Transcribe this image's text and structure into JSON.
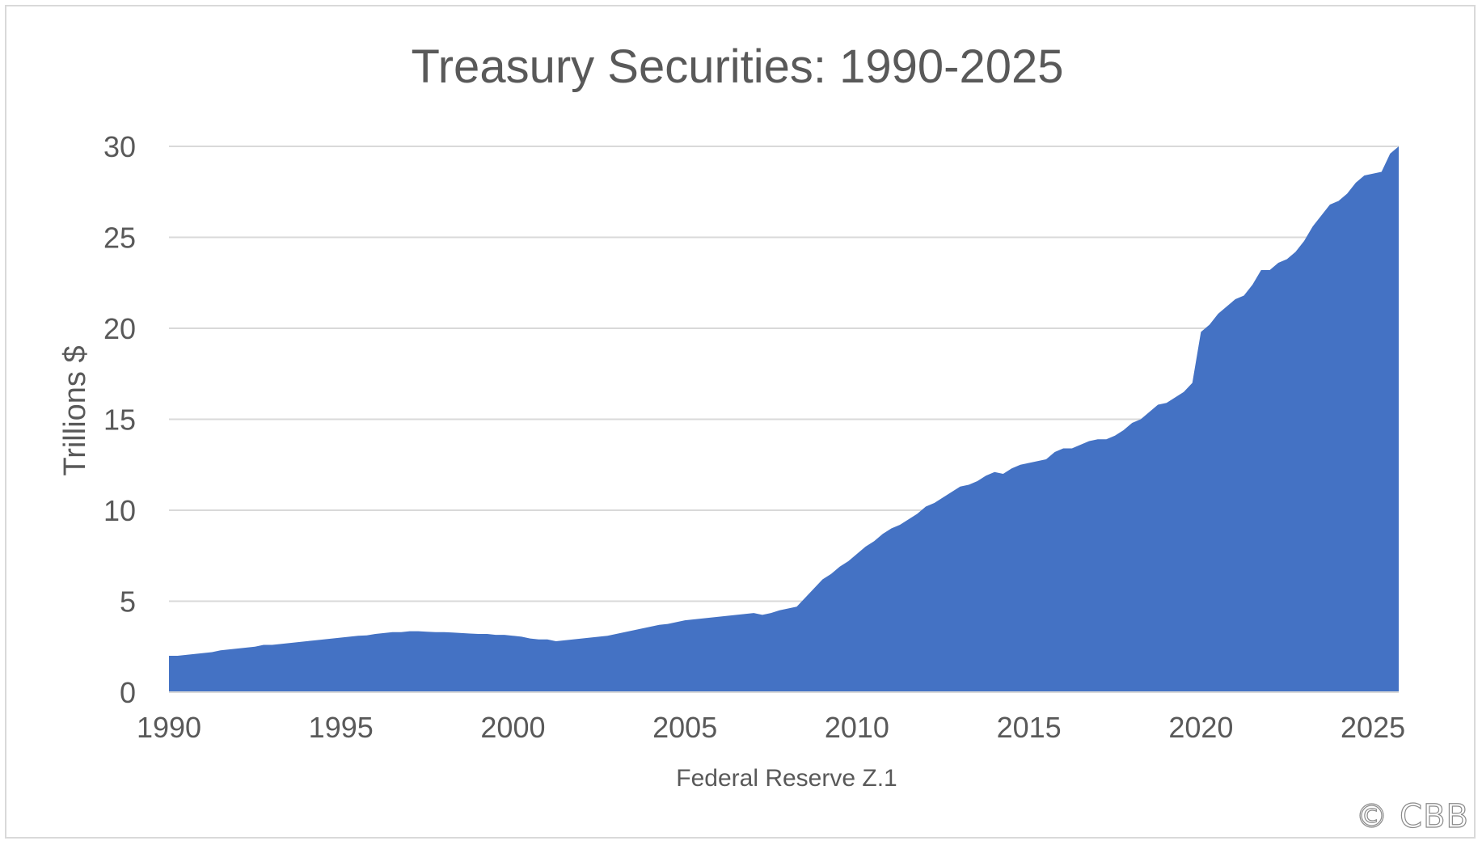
{
  "chart_data": {
    "type": "area",
    "title": "Treasury Securities: 1990-2025",
    "xlabel": "Federal Reserve Z.1",
    "ylabel": "Trillions $",
    "xlim": [
      1990,
      2025.75
    ],
    "ylim": [
      0,
      30
    ],
    "yticks": [
      "0",
      "5",
      "10",
      "15",
      "20",
      "25",
      "30"
    ],
    "xticks": [
      "1990",
      "1995",
      "2000",
      "2005",
      "2010",
      "2015",
      "2020",
      "2025"
    ],
    "grid": true,
    "legend": "none",
    "series": [
      {
        "color": "#4472c4",
        "points": [
          [
            1990.0,
            2.0
          ],
          [
            1990.25,
            2.0
          ],
          [
            1990.5,
            2.05
          ],
          [
            1990.75,
            2.1
          ],
          [
            1991.0,
            2.15
          ],
          [
            1991.25,
            2.2
          ],
          [
            1991.5,
            2.3
          ],
          [
            1991.75,
            2.35
          ],
          [
            1992.0,
            2.4
          ],
          [
            1992.25,
            2.45
          ],
          [
            1992.5,
            2.5
          ],
          [
            1992.75,
            2.6
          ],
          [
            1993.0,
            2.6
          ],
          [
            1993.25,
            2.65
          ],
          [
            1993.5,
            2.7
          ],
          [
            1993.75,
            2.75
          ],
          [
            1994.0,
            2.8
          ],
          [
            1994.25,
            2.85
          ],
          [
            1994.5,
            2.9
          ],
          [
            1994.75,
            2.95
          ],
          [
            1995.0,
            3.0
          ],
          [
            1995.25,
            3.05
          ],
          [
            1995.5,
            3.1
          ],
          [
            1995.75,
            3.12
          ],
          [
            1996.0,
            3.2
          ],
          [
            1996.25,
            3.25
          ],
          [
            1996.5,
            3.3
          ],
          [
            1996.75,
            3.3
          ],
          [
            1997.0,
            3.35
          ],
          [
            1997.25,
            3.35
          ],
          [
            1997.5,
            3.32
          ],
          [
            1997.75,
            3.3
          ],
          [
            1998.0,
            3.3
          ],
          [
            1998.25,
            3.28
          ],
          [
            1998.5,
            3.25
          ],
          [
            1998.75,
            3.22
          ],
          [
            1999.0,
            3.2
          ],
          [
            1999.25,
            3.2
          ],
          [
            1999.5,
            3.15
          ],
          [
            1999.75,
            3.15
          ],
          [
            2000.0,
            3.1
          ],
          [
            2000.25,
            3.05
          ],
          [
            2000.5,
            2.95
          ],
          [
            2000.75,
            2.9
          ],
          [
            2001.0,
            2.9
          ],
          [
            2001.25,
            2.8
          ],
          [
            2001.5,
            2.85
          ],
          [
            2001.75,
            2.9
          ],
          [
            2002.0,
            2.95
          ],
          [
            2002.25,
            3.0
          ],
          [
            2002.5,
            3.05
          ],
          [
            2002.75,
            3.1
          ],
          [
            2003.0,
            3.2
          ],
          [
            2003.25,
            3.3
          ],
          [
            2003.5,
            3.4
          ],
          [
            2003.75,
            3.5
          ],
          [
            2004.0,
            3.6
          ],
          [
            2004.25,
            3.7
          ],
          [
            2004.5,
            3.75
          ],
          [
            2004.75,
            3.85
          ],
          [
            2005.0,
            3.95
          ],
          [
            2005.25,
            4.0
          ],
          [
            2005.5,
            4.05
          ],
          [
            2005.75,
            4.1
          ],
          [
            2006.0,
            4.15
          ],
          [
            2006.25,
            4.2
          ],
          [
            2006.5,
            4.25
          ],
          [
            2006.75,
            4.3
          ],
          [
            2007.0,
            4.35
          ],
          [
            2007.25,
            4.25
          ],
          [
            2007.5,
            4.35
          ],
          [
            2007.75,
            4.5
          ],
          [
            2008.0,
            4.6
          ],
          [
            2008.25,
            4.7
          ],
          [
            2008.5,
            5.2
          ],
          [
            2008.75,
            5.7
          ],
          [
            2009.0,
            6.2
          ],
          [
            2009.25,
            6.5
          ],
          [
            2009.5,
            6.9
          ],
          [
            2009.75,
            7.2
          ],
          [
            2010.0,
            7.6
          ],
          [
            2010.25,
            8.0
          ],
          [
            2010.5,
            8.3
          ],
          [
            2010.75,
            8.7
          ],
          [
            2011.0,
            9.0
          ],
          [
            2011.25,
            9.2
          ],
          [
            2011.5,
            9.5
          ],
          [
            2011.75,
            9.8
          ],
          [
            2012.0,
            10.2
          ],
          [
            2012.25,
            10.4
          ],
          [
            2012.5,
            10.7
          ],
          [
            2012.75,
            11.0
          ],
          [
            2013.0,
            11.3
          ],
          [
            2013.25,
            11.4
          ],
          [
            2013.5,
            11.6
          ],
          [
            2013.75,
            11.9
          ],
          [
            2014.0,
            12.1
          ],
          [
            2014.25,
            12.0
          ],
          [
            2014.5,
            12.3
          ],
          [
            2014.75,
            12.5
          ],
          [
            2015.0,
            12.6
          ],
          [
            2015.25,
            12.7
          ],
          [
            2015.5,
            12.8
          ],
          [
            2015.75,
            13.2
          ],
          [
            2016.0,
            13.4
          ],
          [
            2016.25,
            13.4
          ],
          [
            2016.5,
            13.6
          ],
          [
            2016.75,
            13.8
          ],
          [
            2017.0,
            13.9
          ],
          [
            2017.25,
            13.9
          ],
          [
            2017.5,
            14.1
          ],
          [
            2017.75,
            14.4
          ],
          [
            2018.0,
            14.8
          ],
          [
            2018.25,
            15.0
          ],
          [
            2018.5,
            15.4
          ],
          [
            2018.75,
            15.8
          ],
          [
            2019.0,
            15.9
          ],
          [
            2019.25,
            16.2
          ],
          [
            2019.5,
            16.5
          ],
          [
            2019.75,
            17.0
          ],
          [
            2020.0,
            19.8
          ],
          [
            2020.25,
            20.2
          ],
          [
            2020.5,
            20.8
          ],
          [
            2020.75,
            21.2
          ],
          [
            2021.0,
            21.6
          ],
          [
            2021.25,
            21.8
          ],
          [
            2021.5,
            22.4
          ],
          [
            2021.75,
            23.2
          ],
          [
            2022.0,
            23.2
          ],
          [
            2022.25,
            23.6
          ],
          [
            2022.5,
            23.8
          ],
          [
            2022.75,
            24.2
          ],
          [
            2023.0,
            24.8
          ],
          [
            2023.25,
            25.6
          ],
          [
            2023.5,
            26.2
          ],
          [
            2023.75,
            26.8
          ],
          [
            2024.0,
            27.0
          ],
          [
            2024.25,
            27.4
          ],
          [
            2024.5,
            28.0
          ],
          [
            2024.75,
            28.4
          ],
          [
            2025.0,
            28.5
          ],
          [
            2025.25,
            28.6
          ],
          [
            2025.5,
            29.6
          ],
          [
            2025.75,
            30.0
          ]
        ]
      }
    ]
  },
  "watermark": "© CBB",
  "colors": {
    "area": "#4472c4",
    "gridline": "#d9d9d9",
    "text": "#595959",
    "frame": "#d9d9d9"
  }
}
